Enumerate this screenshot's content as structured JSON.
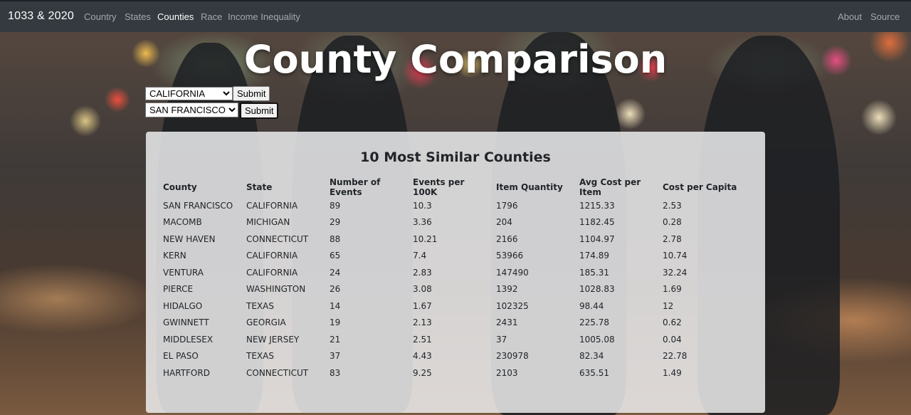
{
  "nav": {
    "brand": "1033 & 2020",
    "links": [
      "Country",
      "States",
      "Counties",
      "Race",
      "Income Inequality"
    ],
    "active": "Counties",
    "right_links": [
      "About",
      "Source"
    ]
  },
  "page_title": "County Comparison",
  "controls": {
    "state_select": {
      "value": "CALIFORNIA"
    },
    "state_submit": "Submit",
    "county_select": {
      "value": "SAN FRANCISCO"
    },
    "county_submit": "Submit"
  },
  "panel": {
    "heading": "10 Most Similar Counties",
    "columns": [
      "County",
      "State",
      "Number of Events",
      "Events per 100K",
      "Item Quantity",
      "Avg Cost per Item",
      "Cost per Capita"
    ],
    "rows": [
      [
        "SAN FRANCISCO",
        "CALIFORNIA",
        "89",
        "10.3",
        "1796",
        "1215.33",
        "2.53"
      ],
      [
        "MACOMB",
        "MICHIGAN",
        "29",
        "3.36",
        "204",
        "1182.45",
        "0.28"
      ],
      [
        "NEW HAVEN",
        "CONNECTICUT",
        "88",
        "10.21",
        "2166",
        "1104.97",
        "2.78"
      ],
      [
        "KERN",
        "CALIFORNIA",
        "65",
        "7.4",
        "53966",
        "174.89",
        "10.74"
      ],
      [
        "VENTURA",
        "CALIFORNIA",
        "24",
        "2.83",
        "147490",
        "185.31",
        "32.24"
      ],
      [
        "PIERCE",
        "WASHINGTON",
        "26",
        "3.08",
        "1392",
        "1028.83",
        "1.69"
      ],
      [
        "HIDALGO",
        "TEXAS",
        "14",
        "1.67",
        "102325",
        "98.44",
        "12"
      ],
      [
        "GWINNETT",
        "GEORGIA",
        "19",
        "2.13",
        "2431",
        "225.78",
        "0.62"
      ],
      [
        "MIDDLESEX",
        "NEW JERSEY",
        "21",
        "2.51",
        "37",
        "1005.08",
        "0.04"
      ],
      [
        "EL PASO",
        "TEXAS",
        "37",
        "4.43",
        "230978",
        "82.34",
        "22.78"
      ],
      [
        "HARTFORD",
        "CONNECTICUT",
        "83",
        "9.25",
        "2103",
        "635.51",
        "1.49"
      ]
    ]
  }
}
